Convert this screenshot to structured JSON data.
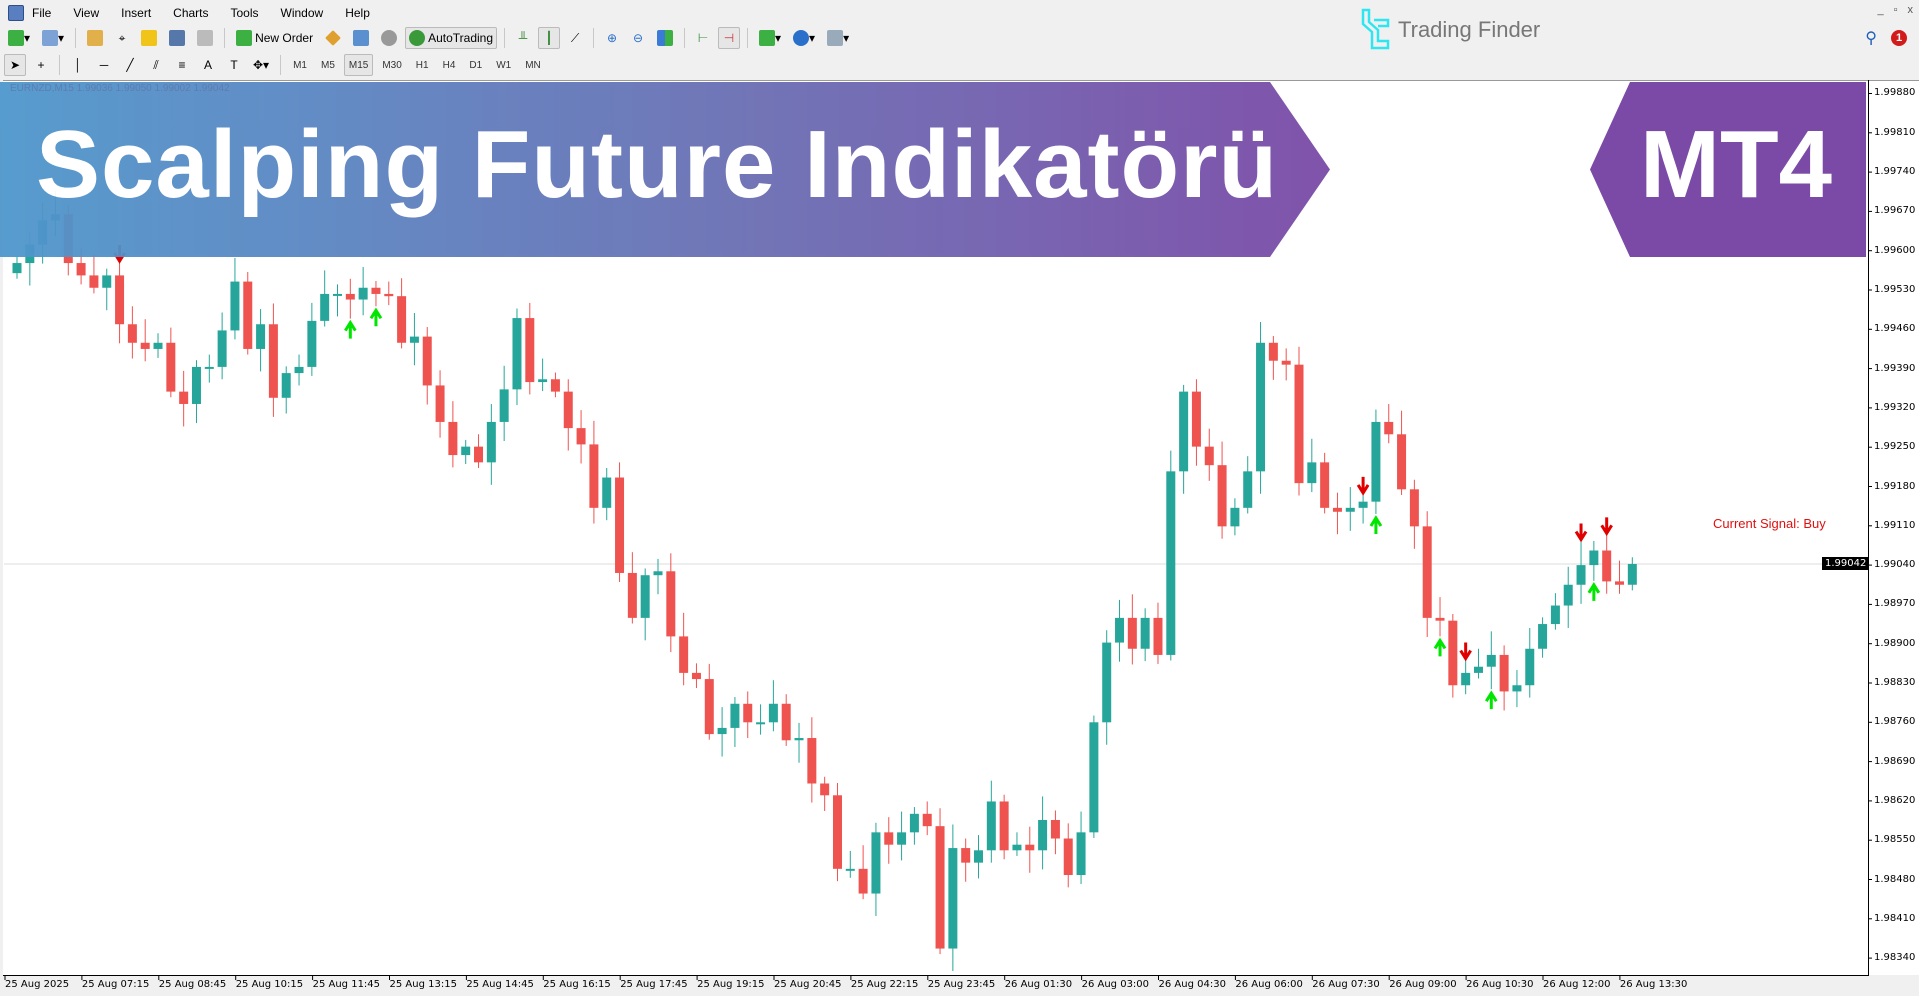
{
  "menu": {
    "items": [
      "File",
      "View",
      "Insert",
      "Charts",
      "Tools",
      "Window",
      "Help"
    ]
  },
  "window_controls": [
    "_",
    "▫",
    "x"
  ],
  "toolbar": {
    "new_order": "New Order",
    "autotrading": "AutoTrading"
  },
  "timeframes": [
    "M1",
    "M5",
    "M15",
    "M30",
    "H1",
    "H4",
    "D1",
    "W1",
    "MN"
  ],
  "active_timeframe": "M15",
  "logo": {
    "text": "Trading Finder",
    "color": "#2ee6f0"
  },
  "notifications": {
    "count": "1"
  },
  "chart_info": "EURNZD,M15  1.99036 1.99050 1.99002 1.99042",
  "banner": {
    "title": "Scalping Future Indikatörü",
    "platform": "MT4"
  },
  "current_signal": "Current Signal: Buy",
  "current_price": "1.99042",
  "colors": {
    "bull": "#26a69a",
    "bear": "#ef5350",
    "buy_arrow": "#00e600",
    "sell_arrow": "#e00000"
  },
  "chart_data": {
    "type": "candlestick",
    "symbol": "EURNZD",
    "timeframe": "M15",
    "first_open": 1.9956,
    "close": [
      1.99578,
      1.99611,
      1.99654,
      1.99665,
      1.99578,
      1.99556,
      1.99534,
      1.99556,
      1.99469,
      1.99436,
      1.99425,
      1.99436,
      1.99349,
      1.99327,
      1.99393,
      1.99393,
      1.99458,
      1.99545,
      1.99425,
      1.99469,
      1.99338,
      1.99382,
      1.99393,
      1.99475,
      1.99523,
      1.99523,
      1.99513,
      1.99534,
      1.99523,
      1.99519,
      1.99436,
      1.99447,
      1.9936,
      1.99295,
      1.99236,
      1.99251,
      1.99223,
      1.99295,
      1.99353,
      1.9948,
      1.99366,
      1.99371,
      1.99349,
      1.99284,
      1.99255,
      1.99142,
      1.99196,
      1.99026,
      1.98946,
      1.99022,
      1.99029,
      1.98913,
      1.98848,
      1.98837,
      1.98739,
      1.9875,
      1.98793,
      1.9876,
      1.9876,
      1.98793,
      1.98728,
      1.98732,
      1.98651,
      1.9863,
      1.98499,
      1.98499,
      1.98455,
      1.98564,
      1.98542,
      1.98564,
      1.98597,
      1.98575,
      1.98357,
      1.98536,
      1.9851,
      1.98532,
      1.98619,
      1.98532,
      1.98542,
      1.98532,
      1.98586,
      1.98553,
      1.98488,
      1.98564,
      1.9876,
      1.98902,
      1.98946,
      1.98891,
      1.98946,
      1.9888,
      1.99207,
      1.99349,
      1.99251,
      1.99218,
      1.99109,
      1.99142,
      1.99207,
      1.99436,
      1.99404,
      1.99397,
      1.99186,
      1.99223,
      1.99142,
      1.99135,
      1.99142,
      1.99153,
      1.99295,
      1.99273,
      1.99175,
      1.99109,
      1.98946,
      1.98941,
      1.98826,
      1.98848,
      1.98859,
      1.9888,
      1.98815,
      1.98826,
      1.98891,
      1.98935,
      1.98968,
      1.99005,
      1.9904,
      1.99066,
      1.99011,
      1.99005,
      1.99042
    ],
    "sell_signals": [
      8,
      105,
      113,
      122,
      124
    ],
    "buy_signals": [
      26,
      28,
      106,
      111,
      115,
      123
    ],
    "y_ticks": [
      "1.99880",
      "1.99810",
      "1.99740",
      "1.99670",
      "1.99600",
      "1.99530",
      "1.99460",
      "1.99390",
      "1.99320",
      "1.99250",
      "1.99180",
      "1.99110",
      "1.99040",
      "1.98970",
      "1.98900",
      "1.98830",
      "1.98760",
      "1.98690",
      "1.98620",
      "1.98550",
      "1.98480",
      "1.98410",
      "1.98340"
    ],
    "x_ticks": [
      "25 Aug 2025",
      "25 Aug 07:15",
      "25 Aug 08:45",
      "25 Aug 10:15",
      "25 Aug 11:45",
      "25 Aug 13:15",
      "25 Aug 14:45",
      "25 Aug 16:15",
      "25 Aug 17:45",
      "25 Aug 19:15",
      "25 Aug 20:45",
      "25 Aug 22:15",
      "25 Aug 23:45",
      "26 Aug 01:30",
      "26 Aug 03:00",
      "26 Aug 04:30",
      "26 Aug 06:00",
      "26 Aug 07:30",
      "26 Aug 09:00",
      "26 Aug 10:30",
      "26 Aug 12:00",
      "26 Aug 13:30"
    ]
  }
}
